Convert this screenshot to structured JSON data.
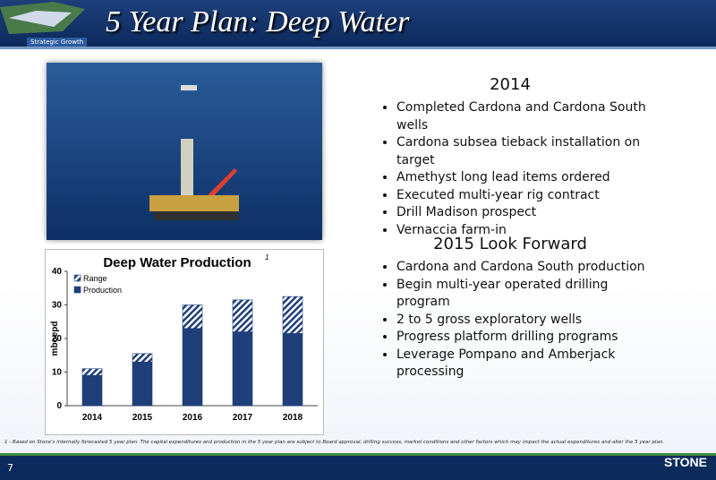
{
  "header": {
    "title": "5 Year Plan: Deep Water",
    "tag": "Strategic Growth"
  },
  "sections": [
    {
      "heading": "2014",
      "bullets": [
        "Completed Cardona and Cardona South wells",
        "Cardona subsea tieback installation on target",
        "Amethyst long lead items ordered",
        "Executed multi-year rig contract",
        "Drill Madison prospect",
        "Vernaccia farm-in"
      ]
    },
    {
      "heading": "2015 Look Forward",
      "bullets": [
        "Cardona and Cardona South production",
        "Begin multi-year operated drilling program",
        "2 to 5 gross exploratory wells",
        "Progress platform drilling programs",
        "Leverage Pompano and Amberjack processing"
      ]
    }
  ],
  "chart_data": {
    "type": "stacked_bar",
    "title": "Deep Water Production",
    "title_note": "1",
    "y_label": "mboepd",
    "categories": [
      "2014",
      "2015",
      "2016",
      "2017",
      "2018"
    ],
    "series": [
      {
        "name": "Production",
        "color": "#1f3f7a",
        "values": [
          9,
          13,
          23,
          22,
          21.5
        ]
      },
      {
        "name": "Range",
        "color": "#1f3f7a",
        "hatched": true,
        "values": [
          2,
          2.5,
          7,
          9.5,
          11
        ]
      }
    ],
    "ylim": [
      0,
      40
    ],
    "yticks": [
      0,
      10,
      20,
      30,
      40
    ],
    "legend": "upper left"
  },
  "footnote": "1 - Based on Stone's internally forecasted 5 year plan. The capital expenditures and production in the 5 year plan are subject to Board approval, drilling success, market conditions and other factors which may impact  the actual expenditures and alter the 5 year plan.",
  "page_number": "7",
  "logo": "STONE"
}
